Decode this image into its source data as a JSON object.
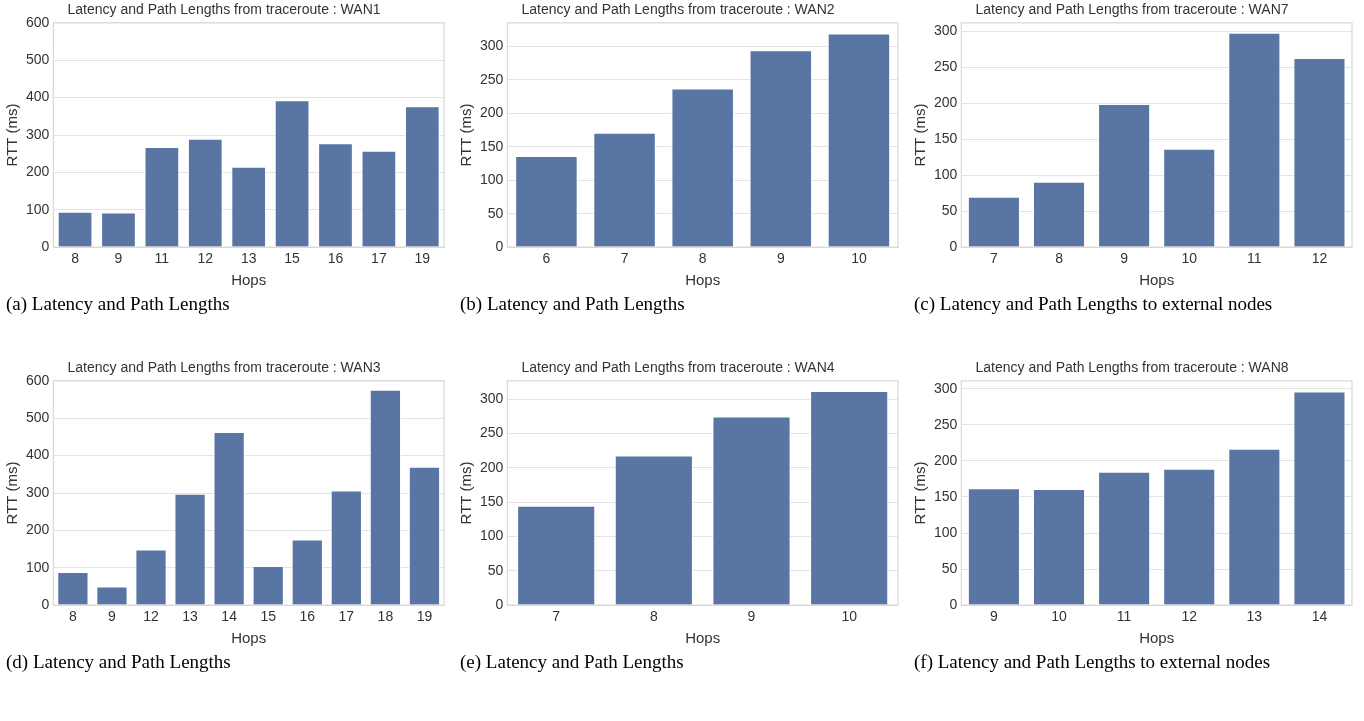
{
  "chart_data": [
    {
      "type": "bar",
      "title": "Latency and Path Lengths from traceroute : WAN1",
      "xlabel": "Hops",
      "ylabel": "RTT (ms)",
      "categories": [
        "8",
        "9",
        "11",
        "12",
        "13",
        "15",
        "16",
        "17",
        "19"
      ],
      "values": [
        95,
        93,
        268,
        290,
        215,
        393,
        278,
        258,
        377
      ],
      "color": "#5975a4",
      "ylim": [
        0,
        600
      ],
      "yticks": [
        0,
        100,
        200,
        300,
        400,
        500,
        600
      ],
      "grid": "y",
      "legend": false,
      "annotations": [
        "(a) Latency and Path Lengths"
      ]
    },
    {
      "type": "bar",
      "title": "Latency and Path Lengths from traceroute : WAN2",
      "xlabel": "Hops",
      "ylabel": "RTT (ms)",
      "categories": [
        "6",
        "7",
        "8",
        "9",
        "10"
      ],
      "values": [
        136,
        171,
        237,
        294,
        319
      ],
      "color": "#5975a4",
      "ylim": [
        0,
        335
      ],
      "yticks": [
        0,
        50,
        100,
        150,
        200,
        250,
        300
      ],
      "grid": "y",
      "legend": false,
      "annotations": [
        "(b) Latency and Path Lengths"
      ]
    },
    {
      "type": "bar",
      "title": "Latency and Path Lengths from traceroute : WAN7",
      "xlabel": "Hops",
      "ylabel": "RTT (ms)",
      "categories": [
        "7",
        "8",
        "9",
        "10",
        "11",
        "12"
      ],
      "values": [
        70,
        91,
        199,
        137,
        298,
        263
      ],
      "color": "#5975a4",
      "ylim": [
        0,
        312
      ],
      "yticks": [
        0,
        50,
        100,
        150,
        200,
        250,
        300
      ],
      "grid": "y",
      "legend": false,
      "annotations": [
        "(c) Latency and Path Lengths to external nodes"
      ]
    },
    {
      "type": "bar",
      "title": "Latency and Path Lengths from traceroute : WAN3",
      "xlabel": "Hops",
      "ylabel": "RTT (ms)",
      "categories": [
        "8",
        "9",
        "12",
        "13",
        "14",
        "15",
        "16",
        "17",
        "18",
        "19"
      ],
      "values": [
        89,
        50,
        149,
        298,
        463,
        105,
        176,
        307,
        576,
        370
      ],
      "color": "#5975a4",
      "ylim": [
        0,
        600
      ],
      "yticks": [
        0,
        100,
        200,
        300,
        400,
        500,
        600
      ],
      "grid": "y",
      "legend": false,
      "annotations": [
        "(d) Latency and Path Lengths"
      ]
    },
    {
      "type": "bar",
      "title": "Latency and Path Lengths from traceroute : WAN4",
      "xlabel": "Hops",
      "ylabel": "RTT (ms)",
      "categories": [
        "7",
        "8",
        "9",
        "10"
      ],
      "values": [
        145,
        218,
        275,
        312
      ],
      "color": "#5975a4",
      "ylim": [
        0,
        327
      ],
      "yticks": [
        0,
        50,
        100,
        150,
        200,
        250,
        300
      ],
      "grid": "y",
      "legend": false,
      "annotations": [
        "(e) Latency and Path Lengths"
      ]
    },
    {
      "type": "bar",
      "title": "Latency and Path Lengths from traceroute : WAN8",
      "xlabel": "Hops",
      "ylabel": "RTT (ms)",
      "categories": [
        "9",
        "10",
        "11",
        "12",
        "13",
        "14"
      ],
      "values": [
        162,
        161,
        185,
        189,
        217,
        296
      ],
      "color": "#5975a4",
      "ylim": [
        0,
        311
      ],
      "yticks": [
        0,
        50,
        100,
        150,
        200,
        250,
        300
      ],
      "grid": "y",
      "legend": false,
      "annotations": [
        "(f) Latency and Path Lengths to external nodes"
      ]
    }
  ]
}
